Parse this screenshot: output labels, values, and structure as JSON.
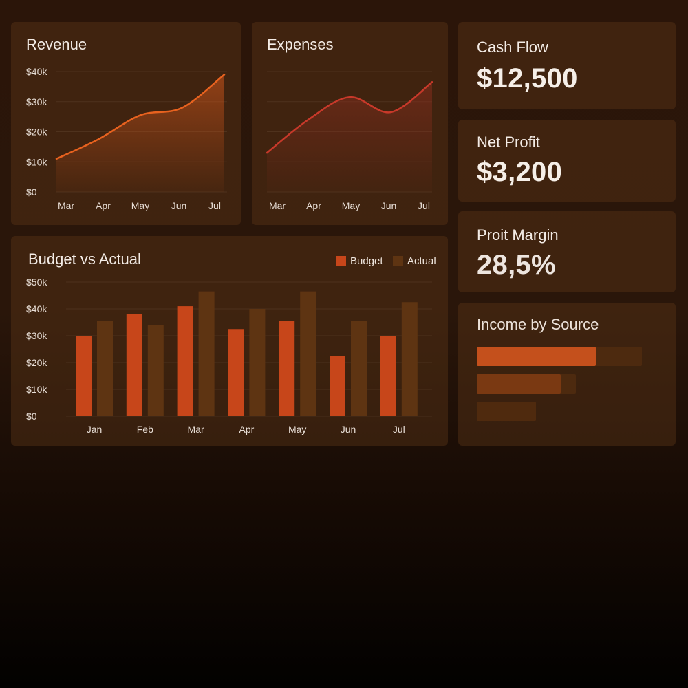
{
  "colors": {
    "accent": "#e8621f",
    "budget": "#c7461a",
    "actual": "#5e3412",
    "expenses_line": "#c8392a"
  },
  "revenue": {
    "title": "Revenue",
    "chart_data": {
      "type": "area",
      "title": "Revenue",
      "categories": [
        "Mar",
        "Apr",
        "May",
        "Jun",
        "Jul"
      ],
      "y_ticks": [
        "$0",
        "$10k",
        "$20k",
        "$30k",
        "$40k"
      ],
      "ylim": [
        0,
        40000
      ],
      "series": [
        {
          "values": [
            11000,
            17500,
            25500,
            28000,
            39000
          ]
        }
      ],
      "grid": true
    }
  },
  "expenses": {
    "title": "Expenses",
    "chart_data": {
      "type": "area",
      "title": "Expenses",
      "categories": [
        "Mar",
        "Apr",
        "May",
        "Jun",
        "Jul"
      ],
      "ylim": [
        0,
        40000
      ],
      "series": [
        {
          "values": [
            13000,
            24000,
            31500,
            26500,
            36500
          ]
        }
      ],
      "grid": true
    }
  },
  "cash_flow": {
    "title": "Cash Flow",
    "value": "$12,500"
  },
  "net_profit": {
    "title": "Net Profit",
    "value": "$3,200"
  },
  "profit_margin": {
    "title": "Proit Margin",
    "value": "28,5%"
  },
  "budget_vs_actual": {
    "title": "Budget vs Actual",
    "legend": {
      "budget": "Budget",
      "actual": "Actual"
    },
    "chart_data": {
      "type": "bar",
      "title": "Budget vs Actual",
      "categories": [
        "Jan",
        "Feb",
        "Mar",
        "Apr",
        "May",
        "Jun",
        "Jul"
      ],
      "y_ticks": [
        "$0",
        "$10k",
        "$20k",
        "$30k",
        "$40k",
        "$50k"
      ],
      "ylim": [
        0,
        50000
      ],
      "series": [
        {
          "name": "Budget",
          "values": [
            30000,
            38000,
            41000,
            32500,
            35500,
            22500,
            30000
          ]
        },
        {
          "name": "Actual",
          "values": [
            35500,
            34000,
            46500,
            40000,
            46500,
            35500,
            42500
          ]
        }
      ],
      "legend": "top-right",
      "grid": true
    }
  },
  "income_by_source": {
    "title": "Income by Source",
    "chart_data": {
      "type": "bar",
      "orientation": "horizontal",
      "title": "Income by Source",
      "bars": [
        {
          "value": 0.72,
          "total": 1.0
        },
        {
          "value": 0.51,
          "total": 0.6
        },
        {
          "value": 0.36,
          "total": 0.36
        }
      ]
    }
  }
}
